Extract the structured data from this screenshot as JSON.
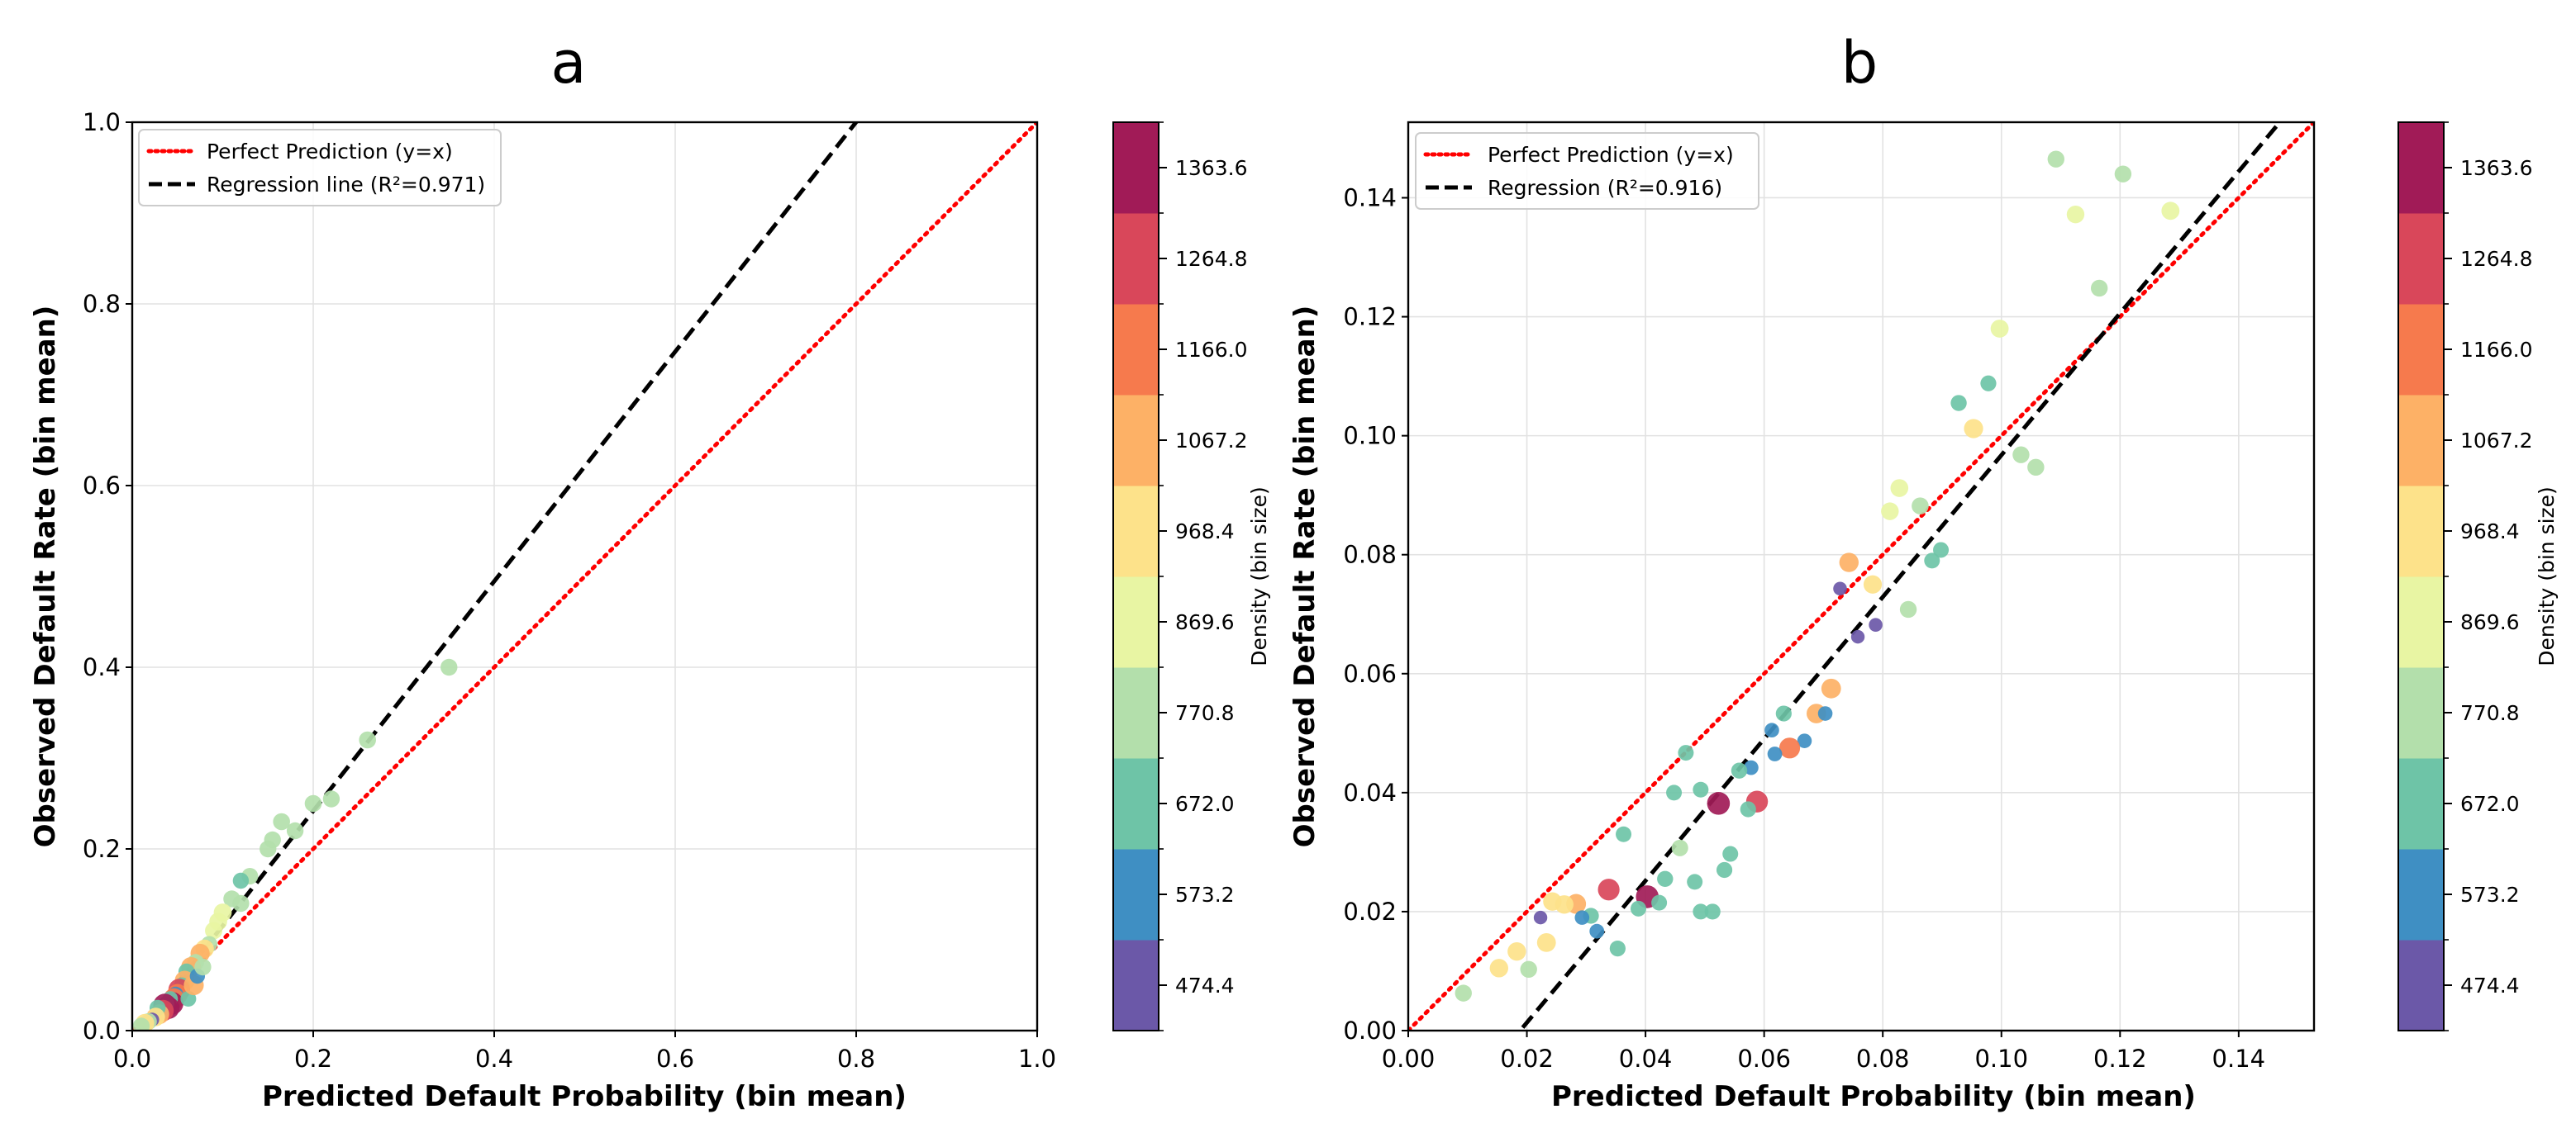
{
  "colors": {
    "perfect": "#ff0000",
    "regression": "#000000",
    "colormap": [
      "#6b58a8",
      "#3f8fc3",
      "#6ec4a7",
      "#b3dfab",
      "#e8f5a3",
      "#fde28a",
      "#fdb166",
      "#f67a4d",
      "#d9475a",
      "#a11b57"
    ]
  },
  "chart_data": [
    {
      "type": "scatter",
      "panel_title": "a",
      "xlabel": "Predicted Default Probability (bin mean)",
      "ylabel": "Observed Default Rate (bin mean)",
      "xlim": [
        0.0,
        1.0
      ],
      "ylim": [
        0.0,
        1.0
      ],
      "x_ticks": [
        "0.0",
        "0.2",
        "0.4",
        "0.6",
        "0.8",
        "1.0"
      ],
      "y_ticks": [
        "0.0",
        "0.2",
        "0.4",
        "0.6",
        "0.8",
        "1.0"
      ],
      "grid": true,
      "legend_position": "top-left",
      "legend": [
        {
          "label": "Perfect Prediction (y=x)",
          "style": "dotted",
          "color": "#ff0000"
        },
        {
          "label": "Regression line (R²=0.971)",
          "style": "dashed",
          "color": "#000000"
        }
      ],
      "perfect_line": {
        "slope": 1.0,
        "intercept": 0.0
      },
      "regression_line": {
        "slope": 1.264,
        "intercept": -0.011,
        "r2": 0.971
      },
      "colorbar": {
        "label": "Density (bin size)",
        "ticks": [
          "474.4",
          "573.2",
          "672.0",
          "770.8",
          "869.6",
          "968.4",
          "1067.2",
          "1166.0",
          "1264.8",
          "1363.6"
        ],
        "range": [
          425,
          1413
        ]
      },
      "points": [
        [
          0.35,
          0.4,
          780
        ],
        [
          0.26,
          0.32,
          800
        ],
        [
          0.22,
          0.255,
          790
        ],
        [
          0.2,
          0.25,
          800
        ],
        [
          0.18,
          0.22,
          790
        ],
        [
          0.165,
          0.23,
          800
        ],
        [
          0.155,
          0.21,
          780
        ],
        [
          0.15,
          0.2,
          790
        ],
        [
          0.13,
          0.17,
          760
        ],
        [
          0.12,
          0.165,
          700
        ],
        [
          0.11,
          0.145,
          790
        ],
        [
          0.1,
          0.13,
          900
        ],
        [
          0.095,
          0.12,
          880
        ],
        [
          0.09,
          0.11,
          830
        ],
        [
          0.085,
          0.095,
          750
        ],
        [
          0.08,
          0.09,
          950
        ],
        [
          0.075,
          0.085,
          1020
        ],
        [
          0.07,
          0.075,
          780
        ],
        [
          0.065,
          0.07,
          1080
        ],
        [
          0.06,
          0.065,
          720
        ],
        [
          0.058,
          0.055,
          1090
        ],
        [
          0.055,
          0.05,
          650
        ],
        [
          0.052,
          0.045,
          1280
        ],
        [
          0.05,
          0.04,
          1170
        ],
        [
          0.048,
          0.04,
          620
        ],
        [
          0.046,
          0.035,
          1200
        ],
        [
          0.044,
          0.03,
          1380
        ],
        [
          0.042,
          0.035,
          640
        ],
        [
          0.04,
          0.025,
          1320
        ],
        [
          0.038,
          0.03,
          660
        ],
        [
          0.036,
          0.028,
          1400
        ],
        [
          0.034,
          0.022,
          1250
        ],
        [
          0.032,
          0.02,
          580
        ],
        [
          0.03,
          0.018,
          1060
        ],
        [
          0.028,
          0.025,
          700
        ],
        [
          0.026,
          0.015,
          960
        ],
        [
          0.022,
          0.012,
          500
        ],
        [
          0.018,
          0.01,
          770
        ],
        [
          0.014,
          0.008,
          990
        ],
        [
          0.01,
          0.005,
          790
        ],
        [
          0.062,
          0.035,
          680
        ],
        [
          0.068,
          0.05,
          1100
        ],
        [
          0.072,
          0.06,
          620
        ],
        [
          0.078,
          0.07,
          790
        ],
        [
          0.12,
          0.14,
          780
        ]
      ]
    },
    {
      "type": "scatter",
      "panel_title": "b",
      "xlabel": "Predicted Default Probability (bin mean)",
      "ylabel": "Observed Default Rate (bin mean)",
      "xlim": [
        0.0,
        0.1527
      ],
      "ylim": [
        0.0,
        0.1527
      ],
      "x_ticks": [
        "0.00",
        "0.02",
        "0.04",
        "0.06",
        "0.08",
        "0.10",
        "0.12",
        "0.14"
      ],
      "y_ticks": [
        "0.00",
        "0.02",
        "0.04",
        "0.06",
        "0.08",
        "0.10",
        "0.12",
        "0.14"
      ],
      "grid": true,
      "legend_position": "top-left",
      "legend": [
        {
          "label": "Perfect Prediction (y=x)",
          "style": "dotted",
          "color": "#ff0000"
        },
        {
          "label": "Regression (R²=0.916)",
          "style": "dashed",
          "color": "#000000"
        }
      ],
      "perfect_line": {
        "slope": 1.0,
        "intercept": 0.0
      },
      "regression_line": {
        "slope": 1.1924,
        "intercept": -0.0225,
        "r2": 0.916
      },
      "colorbar": {
        "label": "Density (bin size)",
        "ticks": [
          "474.4",
          "573.2",
          "672.0",
          "770.8",
          "869.6",
          "968.4",
          "1067.2",
          "1166.0",
          "1264.8",
          "1363.6"
        ],
        "range": [
          425,
          1413
        ]
      },
      "points": [
        [
          0.1092,
          0.1465,
          790
        ],
        [
          0.1205,
          0.144,
          790
        ],
        [
          0.1125,
          0.1372,
          870
        ],
        [
          0.1285,
          0.1378,
          900
        ],
        [
          0.1165,
          0.1248,
          780
        ],
        [
          0.0997,
          0.118,
          900
        ],
        [
          0.0928,
          0.1055,
          700
        ],
        [
          0.0978,
          0.1088,
          690
        ],
        [
          0.0953,
          0.1012,
          1010
        ],
        [
          0.1033,
          0.0968,
          790
        ],
        [
          0.1058,
          0.0947,
          780
        ],
        [
          0.0828,
          0.0912,
          880
        ],
        [
          0.0812,
          0.0873,
          870
        ],
        [
          0.0863,
          0.0882,
          800
        ],
        [
          0.0743,
          0.0787,
          1030
        ],
        [
          0.0783,
          0.075,
          940
        ],
        [
          0.0898,
          0.0808,
          680
        ],
        [
          0.0883,
          0.079,
          680
        ],
        [
          0.0728,
          0.0743,
          470
        ],
        [
          0.0843,
          0.0708,
          790
        ],
        [
          0.0758,
          0.0662,
          460
        ],
        [
          0.0788,
          0.0682,
          470
        ],
        [
          0.0713,
          0.0575,
          1060
        ],
        [
          0.0688,
          0.0533,
          1050
        ],
        [
          0.0703,
          0.0533,
          560
        ],
        [
          0.0633,
          0.0533,
          690
        ],
        [
          0.0613,
          0.0505,
          560
        ],
        [
          0.0668,
          0.0487,
          560
        ],
        [
          0.0643,
          0.0475,
          1180
        ],
        [
          0.0618,
          0.0465,
          580
        ],
        [
          0.0588,
          0.0385,
          1280
        ],
        [
          0.0523,
          0.0382,
          1380
        ],
        [
          0.0468,
          0.0467,
          680
        ],
        [
          0.0578,
          0.0442,
          580
        ],
        [
          0.0558,
          0.0437,
          700
        ],
        [
          0.0573,
          0.0372,
          690
        ],
        [
          0.0493,
          0.0405,
          680
        ],
        [
          0.0448,
          0.04,
          680
        ],
        [
          0.0543,
          0.0297,
          680
        ],
        [
          0.0458,
          0.0307,
          760
        ],
        [
          0.0533,
          0.027,
          690
        ],
        [
          0.0363,
          0.033,
          680
        ],
        [
          0.0433,
          0.0255,
          700
        ],
        [
          0.0483,
          0.025,
          680
        ],
        [
          0.0403,
          0.0225,
          1380
        ],
        [
          0.0338,
          0.0237,
          1270
        ],
        [
          0.0423,
          0.0215,
          680
        ],
        [
          0.0388,
          0.0205,
          680
        ],
        [
          0.0283,
          0.0213,
          1080
        ],
        [
          0.0308,
          0.0193,
          690
        ],
        [
          0.0293,
          0.019,
          560
        ],
        [
          0.0318,
          0.0167,
          570
        ],
        [
          0.0243,
          0.0217,
          950
        ],
        [
          0.0263,
          0.0212,
          960
        ],
        [
          0.0493,
          0.02,
          680
        ],
        [
          0.0513,
          0.02,
          690
        ],
        [
          0.0353,
          0.0138,
          690
        ],
        [
          0.0223,
          0.019,
          460
        ],
        [
          0.0233,
          0.0148,
          990
        ],
        [
          0.0183,
          0.0133,
          950
        ],
        [
          0.0153,
          0.0105,
          960
        ],
        [
          0.0203,
          0.0103,
          780
        ],
        [
          0.0093,
          0.0063,
          790
        ]
      ]
    }
  ]
}
